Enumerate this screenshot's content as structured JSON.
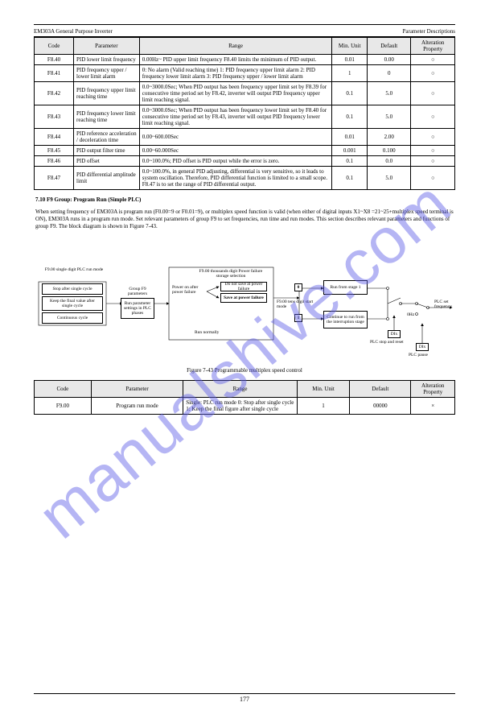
{
  "header": {
    "left": "EM303A General Purpose Inverter",
    "right": "Parameter Descriptions"
  },
  "table1": {
    "headers": [
      "Code",
      "Parameter",
      "Range",
      "Min. Unit",
      "Default",
      "Alteration Property"
    ],
    "rows": [
      {
        "code": "F8.40",
        "name": "PID lower limit frequency",
        "range": "0.00Hz~ PID upper limit frequency\nF8.40 limits the minimum of PID output.",
        "min": "0.01",
        "def": "0.00",
        "attr": "○"
      },
      {
        "code": "F8.41",
        "name": "PID frequency upper / lower limit alarm",
        "range": "0: No alarm (Valid reaching time)\n1: PID frequency upper limit alarm\n2: PID frequency lower limit alarm\n3: PID frequency upper / lower limit alarm",
        "min": "1",
        "def": "0",
        "attr": "○"
      },
      {
        "code": "F8.42",
        "name": "PID frequency upper limit reaching time",
        "range": "0.0~3000.0Sec; When PID output has been frequency upper limit set by F8.39 for consecutive time period set by F8.42, inverter will output PID frequency upper limit reaching signal.",
        "min": "0.1",
        "def": "5.0",
        "attr": "○"
      },
      {
        "code": "F8.43",
        "name": "PID frequency lower limit reaching time",
        "range": "0.0~3000.0Sec; When PID output has been frequency lower limit set by F8.40 for consecutive time period set by F8.43, inverter will output PID frequency lower limit reaching signal.",
        "min": "0.1",
        "def": "5.0",
        "attr": "○"
      },
      {
        "code": "F8.44",
        "name": "PID reference acceleration / deceleration time",
        "range": "0.00~600.00Sec",
        "min": "0.01",
        "def": "2.00",
        "attr": "○"
      },
      {
        "code": "F8.45",
        "name": "PID output filter time",
        "range": "0.00~60.000Sec",
        "min": "0.001",
        "def": "0.100",
        "attr": "○"
      },
      {
        "code": "F8.46",
        "name": "PID offset",
        "range": "0.0~100.0%; PID offset is PID output while the error is zero.",
        "min": "0.1",
        "def": "0.0",
        "attr": "○"
      },
      {
        "code": "F8.47",
        "name": "PID differential amplitude limit",
        "range": "0.0~100.0%, in general PID adjusting, differential is very sensitive, so it leads to system oscillation. Therefore, PID differential function is limited to a small scope. F8.47 is to set the range of PID differential output.",
        "min": "0.1",
        "def": "5.0",
        "attr": "○"
      }
    ]
  },
  "section": {
    "title": "7.10 F9 Group: Program Run (Simple PLC)",
    "desc1": "When setting frequency of EM303A is program run (F0.00=9 or F0.01=9), or multiplex speed function is valid (when either of digital inputs X1~X8 =21~25+multiplex speed terminal is ON), EM303A runs in a program run mode. Set relevant parameters of group F9 to set frequencies, run time and run modes. This section describes relevant parameters and functions of group F9. The block diagram is shown in Figure 7-43."
  },
  "flowchart": {
    "left_title": "F9.00 single digit\nPLC run mode",
    "left_boxes": [
      "Stop after single cycle",
      "Keep the final value after single cycle",
      "Continuous cycle"
    ],
    "mid_label": "Group F9 parameters",
    "mid_box": "Run parameter settings in PLC phases",
    "big_title": "F9.00 thousands digit\nPower failure storage selection",
    "big_left": "Power on after power failure",
    "big_r1": "Do not save at power failure",
    "big_r2": "Save at power failure",
    "big_bottom": "Run normally",
    "tens_label": "F9.00 tens digit\nstart mode",
    "run_stage1": "Run from stage 1",
    "run_cont": "Continue to run from the interruption stage",
    "zero": "0",
    "one": "1",
    "dix1": "DIx",
    "dix2": "DIx",
    "plc_reset": "PLC stop and reset",
    "plc_pause": "PLC pause",
    "hz0": "0Hz",
    "out": "PLC set frequency",
    "caption": "Figure 7-43 Programmable multiplex speed control"
  },
  "table2": {
    "headers": [
      "Code",
      "Parameter",
      "Range",
      "Min. Unit",
      "Default",
      "Alteration Property"
    ],
    "row": {
      "code": "F9.00",
      "name": "Program run mode",
      "range": "Single: PLC run mode\n0: Stop after single cycle\n1: Keep the final figure after single cycle",
      "min": "1",
      "def": "00000",
      "attr": "×"
    }
  },
  "page_num": "177",
  "watermark": "manualshive.com"
}
